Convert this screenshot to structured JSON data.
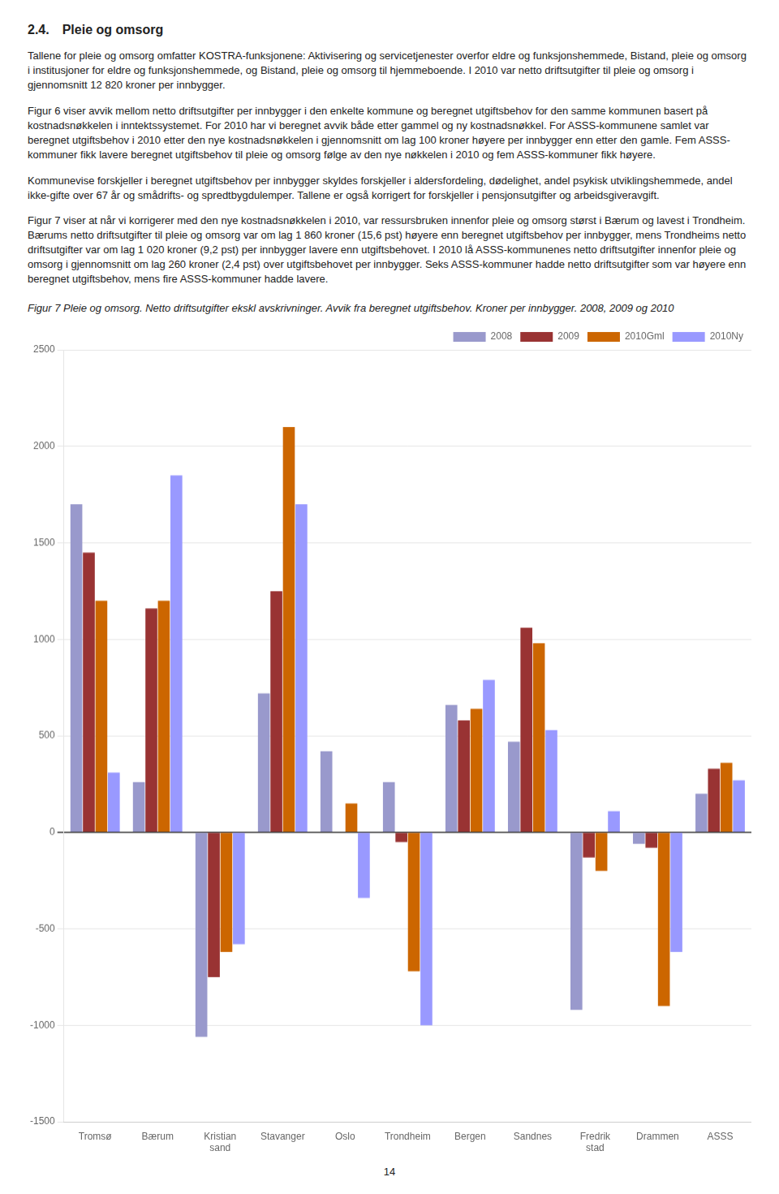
{
  "heading": "2.4. Pleie og omsorg",
  "paragraphs": [
    "Tallene for pleie og omsorg omfatter KOSTRA-funksjonene: Aktivisering og servicetjenester overfor eldre og funksjonshemmede, Bistand, pleie og omsorg i institusjoner for eldre og funksjonshemmede, og Bistand, pleie og omsorg til hjemmeboende. I 2010 var netto driftsutgifter til pleie og omsorg i gjennomsnitt 12 820 kroner per innbygger.",
    "Figur 6 viser avvik mellom netto driftsutgifter per innbygger i den enkelte kommune og beregnet utgiftsbehov for den samme kommunen basert på kostnadsnøkkelen i inntektssystemet. For 2010 har vi beregnet avvik både etter gammel og ny kostnadsnøkkel. For ASSS-kommunene samlet var beregnet utgiftsbehov i 2010 etter den nye kostnadsnøkkelen i gjennomsnitt om lag 100 kroner høyere per innbygger enn etter den gamle. Fem ASSS-kommuner fikk lavere beregnet utgiftsbehov til pleie og omsorg følge av den nye nøkkelen i 2010 og fem ASSS-kommuner fikk høyere.",
    "Kommunevise forskjeller i beregnet utgiftsbehov per innbygger skyldes forskjeller i aldersfordeling, dødelighet, andel psykisk utviklingshemmede, andel ikke-gifte over 67 år og smådrifts- og spredtbygdulemper. Tallene er også korrigert for forskjeller i pensjonsutgifter og arbeidsgiveravgift.",
    "Figur 7 viser at når vi korrigerer med den nye kostnadsnøkkelen i 2010, var ressursbruken innenfor pleie og omsorg størst i Bærum og lavest i Trondheim. Bærums netto driftsutgifter til pleie og omsorg var om lag 1 860 kroner (15,6 pst) høyere enn beregnet utgiftsbehov per innbygger, mens Trondheims netto driftsutgifter var om lag 1 020 kroner (9,2 pst) per innbygger lavere enn utgiftsbehovet. I 2010 lå ASSS-kommunenes netto driftsutgifter innenfor pleie og omsorg i gjennomsnitt om lag 260 kroner (2,4 pst) over utgiftsbehovet per innbygger. Seks ASSS-kommuner hadde netto driftsutgifter som var høyere enn beregnet utgiftsbehov, mens fire ASSS-kommuner hadde lavere."
  ],
  "page_number": "14",
  "chart_data": {
    "type": "bar",
    "title": "Figur 7 Pleie og omsorg. Netto driftsutgifter ekskl avskrivninger. Avvik fra beregnet utgiftsbehov. Kroner per innbygger. 2008, 2009 og 2010",
    "categories": [
      "Tromsø",
      "Bærum",
      "Kristian\nsand",
      "Stavanger",
      "Oslo",
      "Trondheim",
      "Bergen",
      "Sandnes",
      "Fredrik\nstad",
      "Drammen",
      "ASSS"
    ],
    "series": [
      {
        "name": "2008",
        "color": "#9999CC",
        "values": [
          1700,
          260,
          -1060,
          720,
          420,
          260,
          660,
          470,
          -920,
          -60,
          200
        ]
      },
      {
        "name": "2009",
        "color": "#993333",
        "values": [
          1450,
          1160,
          -750,
          1250,
          0,
          -50,
          580,
          1060,
          -130,
          -80,
          330
        ]
      },
      {
        "name": "2010Gml",
        "color": "#CC6600",
        "values": [
          1200,
          1200,
          -620,
          2100,
          150,
          -720,
          640,
          980,
          -200,
          -900,
          360
        ]
      },
      {
        "name": "2010Ny",
        "color": "#9999FF",
        "values": [
          310,
          1850,
          -580,
          1700,
          -340,
          -1000,
          790,
          530,
          110,
          -620,
          270
        ]
      }
    ],
    "ylim": [
      -1500,
      2500
    ],
    "yticks": [
      -1500,
      -1000,
      -500,
      0,
      500,
      1000,
      1500,
      2000,
      2500
    ],
    "grid": true,
    "legend": "upper right"
  }
}
